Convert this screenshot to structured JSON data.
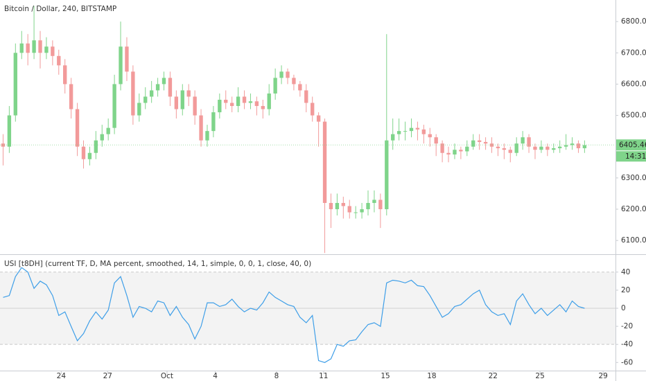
{
  "chart_data": [
    {
      "type": "candlestick",
      "title": "Bitcoin / Dollar, 240, BITSTAMP",
      "up_color": "#7fd48a",
      "down_color": "#f29a9a",
      "xlim": [
        -0.5,
        99
      ],
      "ylim": [
        6056,
        6869
      ],
      "yticks": [
        {
          "value": 6100,
          "label": "6100.00"
        },
        {
          "value": 6200,
          "label": "6200.00"
        },
        {
          "value": 6300,
          "label": "6300.00"
        },
        {
          "value": 6400,
          "label": "6400.00"
        },
        {
          "value": 6500,
          "label": "6500.00"
        },
        {
          "value": 6600,
          "label": "6600.00"
        },
        {
          "value": 6700,
          "label": "6700.00"
        },
        {
          "value": 6800,
          "label": "6800.00"
        }
      ],
      "last_price": 6405.46,
      "countdown": "14:31",
      "last_color": "#7fd48a",
      "open": [
        6410,
        6400,
        6500,
        6700,
        6730,
        6700,
        6740,
        6700,
        6720,
        6690,
        6660,
        6600,
        6520,
        6400,
        6360,
        6380,
        6420,
        6440,
        6460,
        6600,
        6720,
        6640,
        6500,
        6540,
        6560,
        6580,
        6600,
        6620,
        6560,
        6520,
        6580,
        6560,
        6500,
        6420,
        6450,
        6510,
        6550,
        6540,
        6530,
        6560,
        6540,
        6545,
        6530,
        6520,
        6570,
        6620,
        6640,
        6620,
        6600,
        6580,
        6540,
        6500,
        6480,
        6220,
        6200,
        6220,
        6210,
        6190,
        6190,
        6200,
        6220,
        6230,
        6200,
        6420,
        6440,
        6450,
        6450,
        6460,
        6455,
        6440,
        6430,
        6410,
        6380,
        6375,
        6390,
        6385,
        6400,
        6420,
        6415,
        6410,
        6400,
        6395,
        6390,
        6380,
        6410,
        6430,
        6400,
        6390,
        6400,
        6390,
        6395,
        6400,
        6405,
        6410,
        6395
      ],
      "high": [
        6440,
        6530,
        6730,
        6770,
        6760,
        6850,
        6770,
        6750,
        6740,
        6710,
        6680,
        6620,
        6540,
        6420,
        6400,
        6450,
        6470,
        6490,
        6630,
        6800,
        6750,
        6660,
        6570,
        6590,
        6610,
        6620,
        6640,
        6640,
        6580,
        6600,
        6600,
        6580,
        6520,
        6470,
        6530,
        6570,
        6580,
        6560,
        6590,
        6580,
        6570,
        6560,
        6550,
        6600,
        6650,
        6660,
        6650,
        6630,
        6610,
        6600,
        6560,
        6510,
        6490,
        6250,
        6250,
        6240,
        6230,
        6210,
        6220,
        6260,
        6260,
        6250,
        6760,
        6490,
        6490,
        6480,
        6490,
        6480,
        6470,
        6460,
        6440,
        6420,
        6400,
        6410,
        6400,
        6420,
        6440,
        6440,
        6430,
        6430,
        6410,
        6410,
        6400,
        6430,
        6450,
        6440,
        6410,
        6420,
        6410,
        6410,
        6420,
        6440,
        6430,
        6420,
        6420
      ],
      "low": [
        6340,
        6380,
        6480,
        6680,
        6660,
        6680,
        6650,
        6680,
        6660,
        6630,
        6570,
        6490,
        6370,
        6330,
        6340,
        6360,
        6400,
        6420,
        6440,
        6580,
        6610,
        6470,
        6480,
        6520,
        6540,
        6560,
        6580,
        6530,
        6490,
        6500,
        6530,
        6470,
        6400,
        6400,
        6430,
        6490,
        6520,
        6510,
        6510,
        6520,
        6520,
        6500,
        6490,
        6500,
        6550,
        6600,
        6600,
        6580,
        6560,
        6510,
        6480,
        6400,
        6060,
        6140,
        6180,
        6170,
        6170,
        6170,
        6170,
        6180,
        6190,
        6140,
        6180,
        6390,
        6420,
        6420,
        6430,
        6420,
        6410,
        6400,
        6370,
        6350,
        6350,
        6360,
        6360,
        6370,
        6390,
        6390,
        6390,
        6380,
        6370,
        6360,
        6350,
        6370,
        6390,
        6380,
        6360,
        6380,
        6370,
        6380,
        6380,
        6390,
        6390,
        6380,
        6380
      ],
      "close": [
        6400,
        6500,
        6700,
        6730,
        6700,
        6740,
        6700,
        6720,
        6690,
        6660,
        6600,
        6520,
        6400,
        6360,
        6380,
        6420,
        6440,
        6460,
        6600,
        6720,
        6640,
        6500,
        6540,
        6560,
        6580,
        6600,
        6620,
        6560,
        6520,
        6580,
        6560,
        6500,
        6420,
        6450,
        6510,
        6550,
        6540,
        6530,
        6560,
        6540,
        6545,
        6530,
        6520,
        6570,
        6620,
        6640,
        6620,
        6600,
        6580,
        6540,
        6500,
        6480,
        6220,
        6200,
        6220,
        6210,
        6190,
        6190,
        6200,
        6220,
        6230,
        6200,
        6420,
        6440,
        6450,
        6450,
        6460,
        6455,
        6440,
        6430,
        6410,
        6380,
        6375,
        6390,
        6385,
        6400,
        6420,
        6415,
        6410,
        6400,
        6395,
        6390,
        6380,
        6410,
        6430,
        6400,
        6390,
        6400,
        6390,
        6395,
        6400,
        6405,
        6410,
        6395,
        6405
      ]
    },
    {
      "type": "line",
      "title": "USI [t8DH] (current TF, D, MA percent, smoothed, 14, 1, simple, 0, 0, 1, close, 40, 0)",
      "color": "#3d9ee8",
      "band": [
        -40,
        40
      ],
      "band_color": "#ebebeb",
      "hline": 0,
      "xlim": [
        -0.5,
        99
      ],
      "ylim": [
        -69,
        59
      ],
      "yticks": [
        40,
        20,
        0,
        -20,
        -40,
        -60
      ],
      "xticks": [
        {
          "value": 9.4,
          "label": "24"
        },
        {
          "value": 16.9,
          "label": "27"
        },
        {
          "value": 26.5,
          "label": "Oct"
        },
        {
          "value": 34.3,
          "label": "4"
        },
        {
          "value": 44.2,
          "label": "8"
        },
        {
          "value": 51.8,
          "label": "11"
        },
        {
          "value": 61.8,
          "label": "15"
        },
        {
          "value": 69.3,
          "label": "18"
        },
        {
          "value": 79.2,
          "label": "22"
        },
        {
          "value": 86.8,
          "label": "25"
        },
        {
          "value": 97.0,
          "label": "29"
        }
      ],
      "values": [
        12,
        14,
        35,
        45,
        40,
        22,
        30,
        26,
        14,
        -8,
        -4,
        -20,
        -36,
        -28,
        -14,
        -4,
        -12,
        -2,
        28,
        35,
        14,
        -10,
        2,
        0,
        -4,
        8,
        6,
        -8,
        2,
        -10,
        -18,
        -34,
        -20,
        6,
        6,
        2,
        4,
        10,
        2,
        -4,
        0,
        -2,
        6,
        18,
        12,
        8,
        4,
        2,
        -10,
        -16,
        -8,
        -58,
        -60,
        -56,
        -40,
        -42,
        -36,
        -35,
        -26,
        -18,
        -16,
        -20,
        28,
        31,
        30,
        28,
        31,
        25,
        24,
        14,
        2,
        -10,
        -6,
        2,
        4,
        10,
        16,
        20,
        4,
        -4,
        -8,
        -6,
        -18,
        8,
        16,
        4,
        -6,
        0,
        -8,
        -2,
        4,
        -4,
        8,
        2,
        0
      ]
    }
  ]
}
